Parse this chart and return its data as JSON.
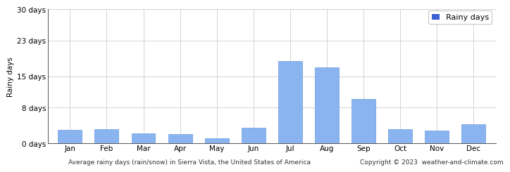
{
  "months": [
    "Jan",
    "Feb",
    "Mar",
    "Apr",
    "May",
    "Jun",
    "Jul",
    "Aug",
    "Sep",
    "Oct",
    "Nov",
    "Dec"
  ],
  "values": [
    3.0,
    3.1,
    2.2,
    2.1,
    1.1,
    3.5,
    18.5,
    17.0,
    10.0,
    3.2,
    2.8,
    4.2
  ],
  "bar_color": "#8ab4f0",
  "bar_edge_color": "#6a99e0",
  "legend_color": "#3b5fd4",
  "yticks": [
    0,
    8,
    15,
    23,
    30
  ],
  "ytick_labels": [
    "0 days",
    "8 days",
    "15 days",
    "23 days",
    "30 days"
  ],
  "ylabel": "Rainy days",
  "legend_label": "Rainy days",
  "footer_left": "Average rainy days (rain/snow) in Sierra Vista, the United States of America",
  "footer_right": "Copyright © 2023  weather-and-climate.com",
  "background_color": "#ffffff",
  "grid_color": "#cccccc",
  "axis_fontsize": 7.5,
  "ylabel_fontsize": 7.5,
  "legend_fontsize": 8,
  "footer_fontsize": 6.5
}
